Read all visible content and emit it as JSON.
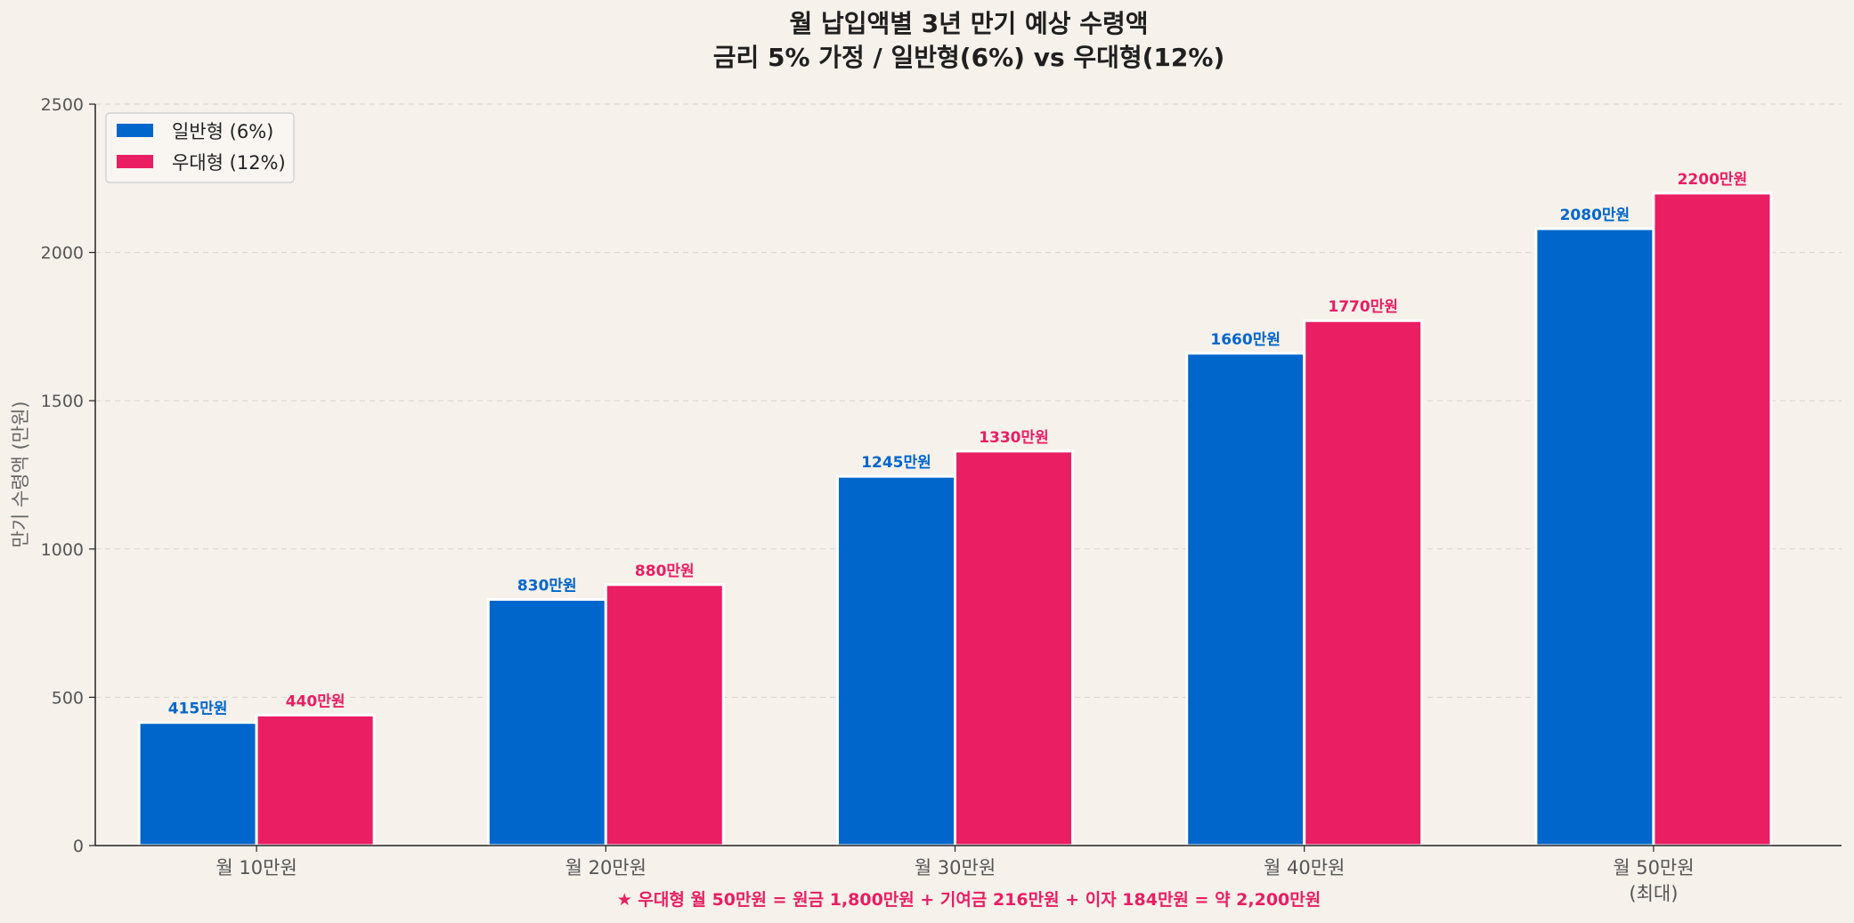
{
  "chart_data": {
    "type": "bar",
    "title": "월 납입액별 3년 만기 예상 수령액",
    "subtitle": "금리 5% 가정 / 일반형(6%) vs 우대형(12%)",
    "xlabel": "",
    "ylabel": "만기 수령액 (만원)",
    "ylim": [
      0,
      2500
    ],
    "yticks": [
      0,
      500,
      1000,
      1500,
      2000,
      2500
    ],
    "grid": true,
    "legend_position": "top-left",
    "categories": [
      [
        "월 10만원"
      ],
      [
        "월 20만원"
      ],
      [
        "월 30만원"
      ],
      [
        "월 40만원"
      ],
      [
        "월 50만원",
        "(최대)"
      ]
    ],
    "series": [
      {
        "name": "일반형 (6%)",
        "color": "#0066cc",
        "values": [
          415,
          830,
          1245,
          1660,
          2080
        ],
        "labels": [
          "415만원",
          "830만원",
          "1245만원",
          "1660만원",
          "2080만원"
        ]
      },
      {
        "name": "우대형 (12%)",
        "color": "#e91e63",
        "values": [
          440,
          880,
          1330,
          1770,
          2200
        ],
        "labels": [
          "440만원",
          "880만원",
          "1330만원",
          "1770만원",
          "2200만원"
        ]
      }
    ],
    "annotation": "★ 우대형 월 50만원 = 원금 1,800만원 + 기여금 216만원 + 이자 184만원 = 약 2,200만원",
    "annotation_color": "#e91e63"
  }
}
